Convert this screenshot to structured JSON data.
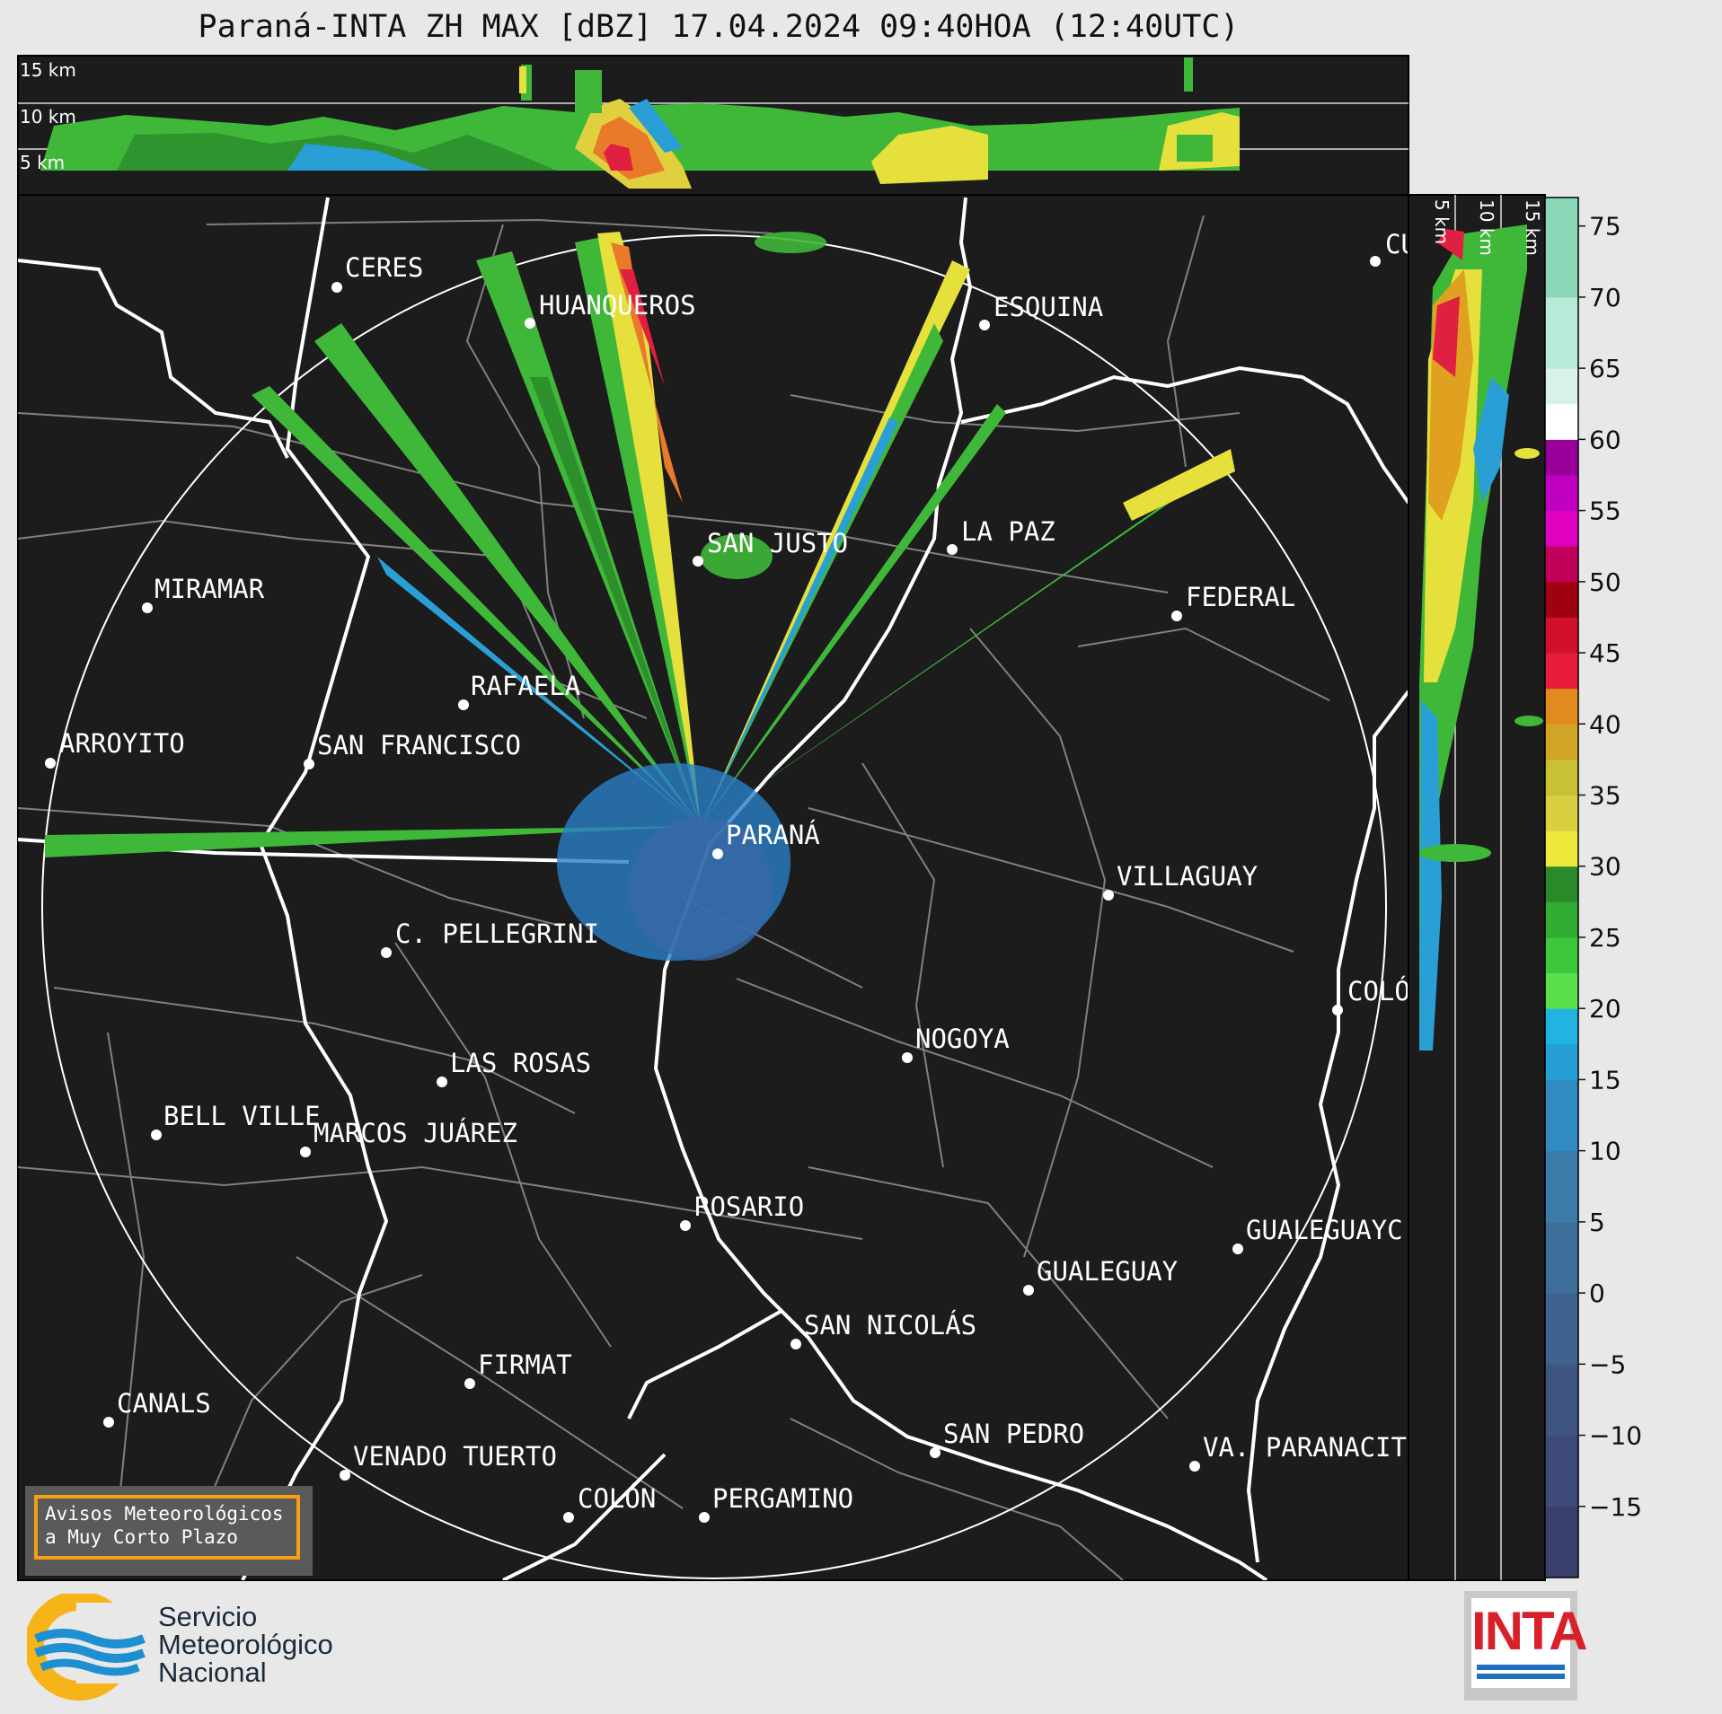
{
  "title": "Paraná-INTA ZH MAX [dBZ] 17.04.2024 09:40HOA (12:40UTC)",
  "top_section_labels": [
    "15 km",
    "10 km",
    "5 km"
  ],
  "side_section_labels": [
    "5 km",
    "10 km",
    "15 km"
  ],
  "colorbar": {
    "ticks": [
      "75",
      "70",
      "65",
      "60",
      "55",
      "50",
      "45",
      "40",
      "35",
      "30",
      "25",
      "20",
      "15",
      "10",
      "5",
      "0",
      "−5",
      "−10",
      "−15"
    ],
    "min": -20,
    "max": 77
  },
  "cities": [
    {
      "name": "CERES"
    },
    {
      "name": "HUANQUEROS"
    },
    {
      "name": "ESQUINA"
    },
    {
      "name": "CU"
    },
    {
      "name": "SAN JUSTO"
    },
    {
      "name": "LA PAZ"
    },
    {
      "name": "MIRAMAR"
    },
    {
      "name": "FEDERAL"
    },
    {
      "name": "RAFAELA"
    },
    {
      "name": "ARROYITO"
    },
    {
      "name": "SAN FRANCISCO"
    },
    {
      "name": "PARANÁ"
    },
    {
      "name": "VILLAGUAY"
    },
    {
      "name": "C. PELLEGRINI"
    },
    {
      "name": "COLÓ"
    },
    {
      "name": "NOGOYA"
    },
    {
      "name": "LAS ROSAS"
    },
    {
      "name": "BELL VILLE"
    },
    {
      "name": "MARCOS JUÁREZ"
    },
    {
      "name": "ROSARIO"
    },
    {
      "name": "GUALEGUAYC"
    },
    {
      "name": "GUALEGUAY"
    },
    {
      "name": "SAN NICOLÁS"
    },
    {
      "name": "FIRMAT"
    },
    {
      "name": "CANALS"
    },
    {
      "name": "SAN PEDRO"
    },
    {
      "name": "VENADO TUERTO"
    },
    {
      "name": "VA. PARANACIT"
    },
    {
      "name": "COLÓN"
    },
    {
      "name": "PERGAMINO"
    }
  ],
  "aviso": {
    "line1": "Avisos Meteorológicos",
    "line2": "a Muy Corto Plazo"
  },
  "smn": {
    "line1": "Servicio",
    "line2": "Meteorológico",
    "line3": "Nacional"
  },
  "inta": {
    "label": "INTA"
  },
  "colors": {
    "map_bg": "#1c1c1c",
    "border": "#ffffff",
    "division": "#808080",
    "aviso_border": "#f5a012",
    "inta_red": "#d8202a"
  }
}
